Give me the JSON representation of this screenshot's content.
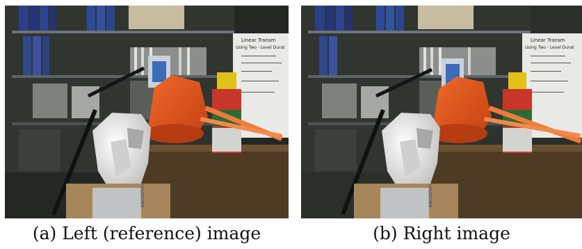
{
  "figure": {
    "panels": [
      {
        "id": "a",
        "caption": "(a) Left (reference) image",
        "poster_text": [
          "Linear Transm",
          "Using Two - Level Durat"
        ],
        "box_label": "ABCDEFGH"
      },
      {
        "id": "b",
        "caption": "(b) Right image",
        "poster_text": [
          "Linear Transm",
          "Using Two - Level Durat"
        ],
        "box_label": "ABCDEFGH"
      }
    ]
  }
}
